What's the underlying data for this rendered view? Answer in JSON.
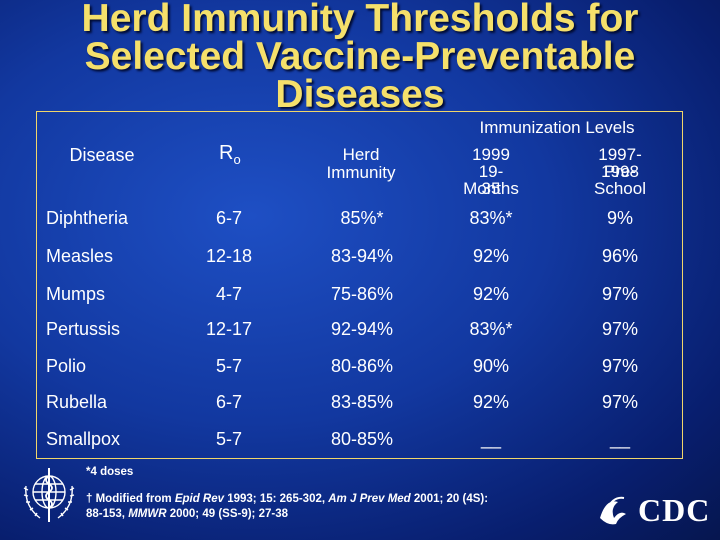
{
  "title": {
    "line1": "Herd Immunity Thresholds for",
    "line2": "Selected Vaccine-Preventable",
    "line3": "Diseases"
  },
  "header": {
    "disease": "Disease",
    "r0_main": "R",
    "r0_sub": "o",
    "herd_line1": "Herd",
    "herd_line2": "Immunity",
    "immunization_levels": "Immunization Levels",
    "y1999_line1": "1999",
    "y1999_line2": "19-35",
    "y1999_line3": "Months",
    "y1997_line1": "1997-1998",
    "y1997_line2": "Pre-School"
  },
  "rows": [
    {
      "disease": "Diphtheria",
      "r0": "6-7",
      "herd": "85%*",
      "m1999": "83%*",
      "m1997": "9%"
    },
    {
      "disease": "Measles",
      "r0": "12-18",
      "herd": "83-94%",
      "m1999": "92%",
      "m1997": "96%"
    },
    {
      "disease": "Mumps",
      "r0": "4-7",
      "herd": "75-86%",
      "m1999": "92%",
      "m1997": "97%"
    },
    {
      "disease": "Pertussis",
      "r0": "12-17",
      "herd": "92-94%",
      "m1999": "83%*",
      "m1997": "97%"
    },
    {
      "disease": "Polio",
      "r0": "5-7",
      "herd": "80-86%",
      "m1999": "90%",
      "m1997": "97%"
    },
    {
      "disease": "Rubella",
      "r0": "6-7",
      "herd": "83-85%",
      "m1999": "92%",
      "m1997": "97%"
    },
    {
      "disease": "Smallpox",
      "r0": "5-7",
      "herd": "80-85%",
      "m1999": "__",
      "m1997": "__"
    }
  ],
  "footnotes": {
    "doses": "*4 doses",
    "mod_prefix": "† Modified from ",
    "j1": "Epid Rev",
    "c1": " 1993; 15: 265-302, ",
    "j2": "Am J Prev Med",
    "c2": " 2001; 20 (4S):",
    "line3_a": "88-153, ",
    "j3": "MMWR",
    "line3_b": " 2000; 49 (SS-9); 27-38"
  },
  "logos": {
    "cdc_text": "CDC"
  },
  "colors": {
    "title": "#f5e06b",
    "frame": "#f0d66a",
    "background": "#1238a0"
  }
}
